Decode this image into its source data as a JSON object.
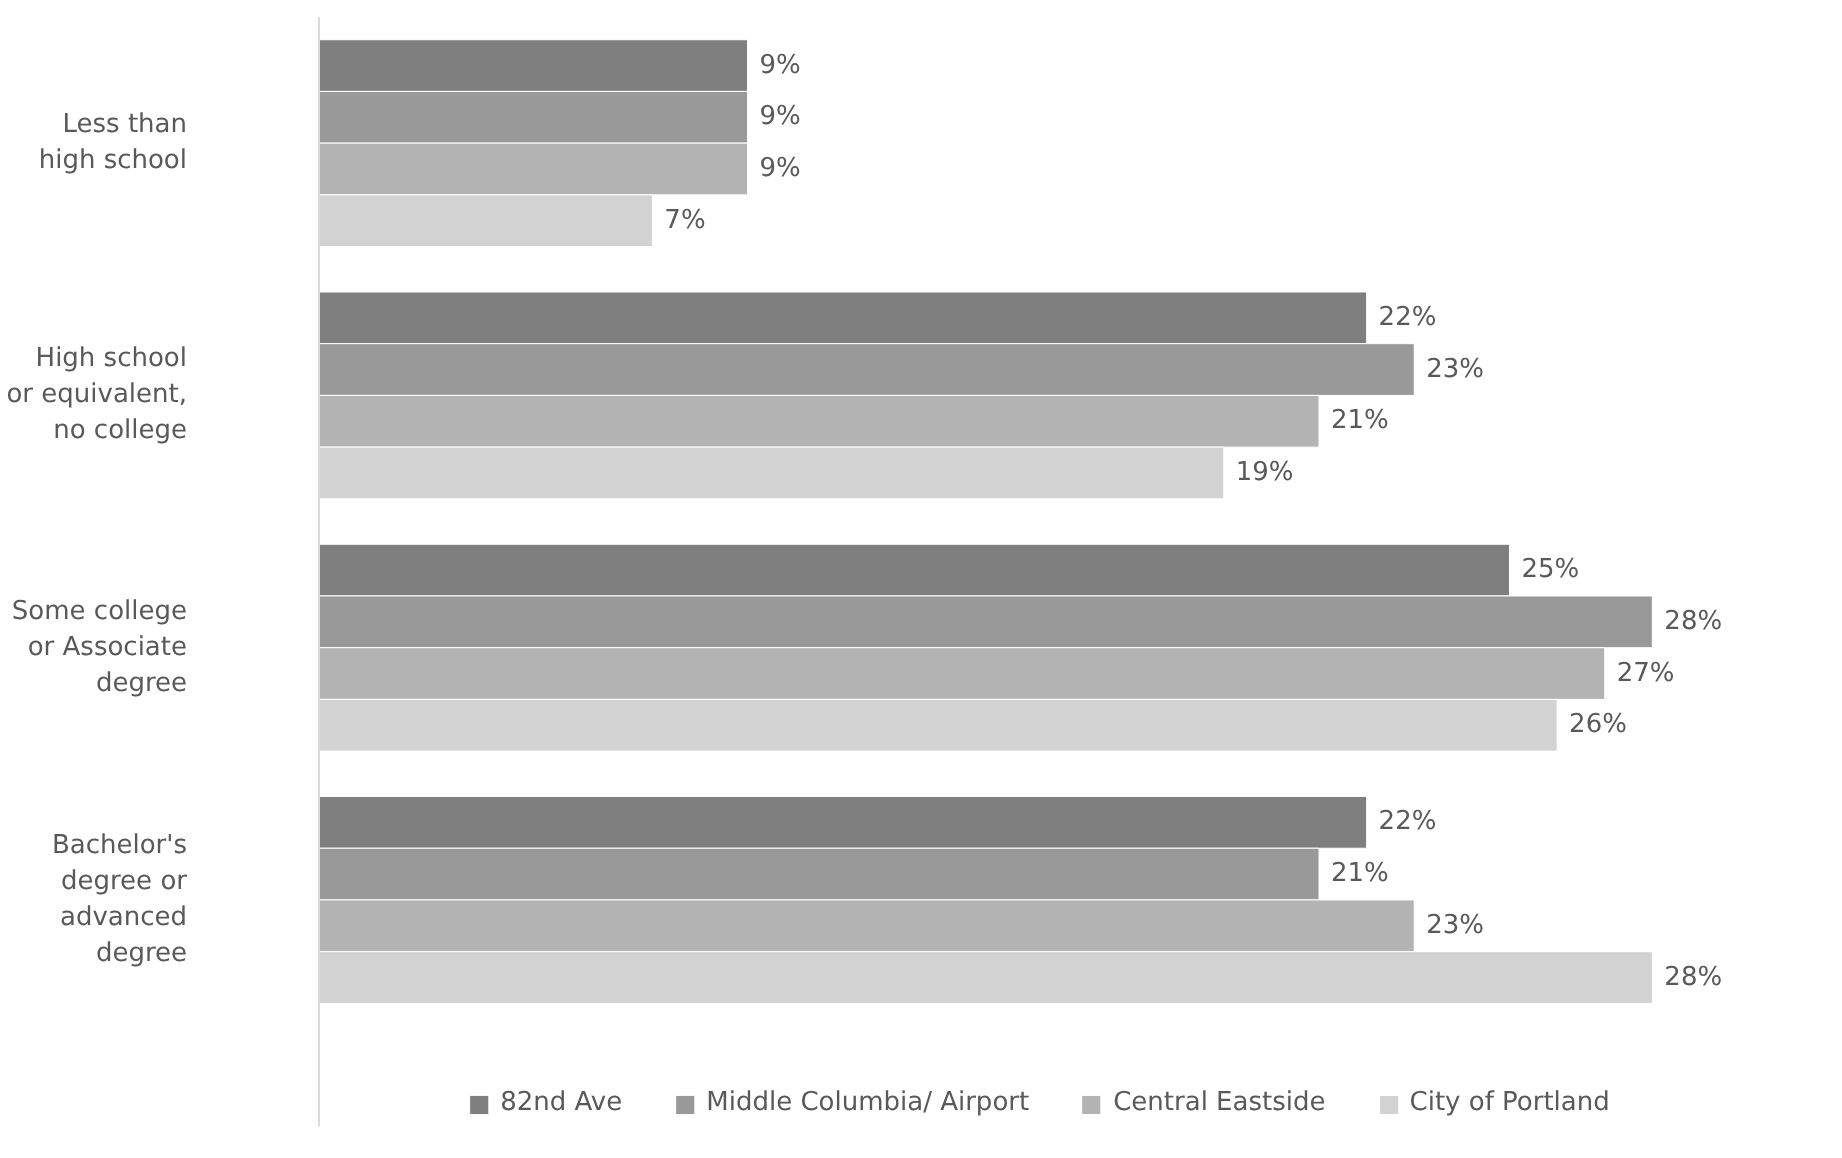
{
  "chart_data": {
    "type": "bar",
    "orientation": "horizontal",
    "categories": [
      "Less than\nhigh school",
      "High school\nor equivalent,\nno college",
      "Some college\nor Associate\ndegree",
      "Bachelor's\ndegree or\nadvanced\ndegree"
    ],
    "series": [
      {
        "name": "82nd Ave",
        "color": "#7f7f7f",
        "values": [
          9,
          22,
          25,
          22
        ],
        "value_labels": [
          "9%",
          "22%",
          "25%",
          "22%"
        ]
      },
      {
        "name": "Middle Columbia/ Airport",
        "color": "#999999",
        "values": [
          9,
          23,
          28,
          21
        ],
        "value_labels": [
          "9%",
          "23%",
          "28%",
          "21%"
        ]
      },
      {
        "name": "Central Eastside",
        "color": "#b3b3b3",
        "values": [
          9,
          21,
          27,
          23
        ],
        "value_labels": [
          "9%",
          "21%",
          "27%",
          "23%"
        ]
      },
      {
        "name": "City of Portland",
        "color": "#d2d2d2",
        "values": [
          7,
          19,
          26,
          28
        ],
        "value_labels": [
          "7%",
          "19%",
          "26%",
          "28%"
        ]
      }
    ],
    "legend": "bottom"
  }
}
